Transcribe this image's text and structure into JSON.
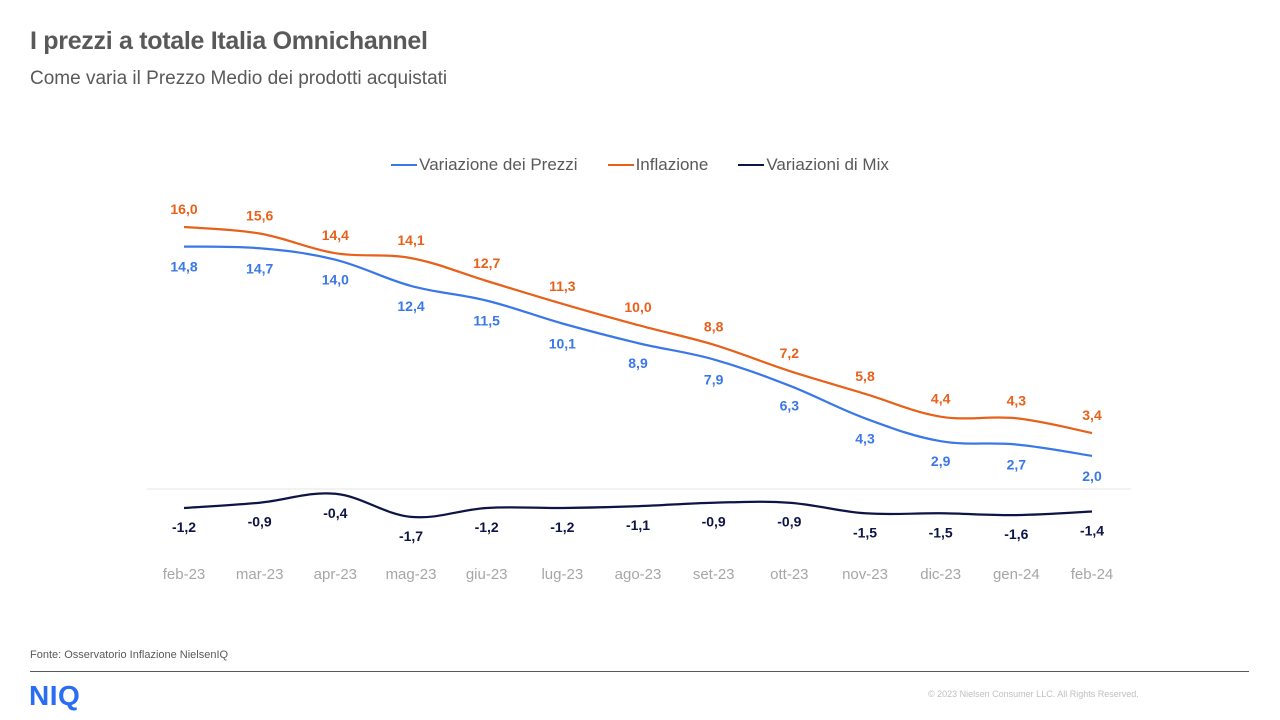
{
  "header": {
    "title": "I prezzi a totale Italia Omnichannel",
    "subtitle": "Come varia il Prezzo  Medio dei prodotti acquistati"
  },
  "footer": {
    "source": "Fonte: Osservatorio Inflazione NielsenIQ",
    "logo": "NIQ",
    "copyright": "© 2023  Nielsen Consumer LLC. All Rights Reserved."
  },
  "colors": {
    "prezzi": "#3b78e7",
    "inflazione": "#e8611a",
    "mix": "#0d1446",
    "axis_text": "#a6a6a6",
    "brand": "#2a6df4"
  },
  "chart_data": {
    "type": "line",
    "title": "I prezzi a totale Italia Omnichannel",
    "subtitle": "Come varia il Prezzo  Medio dei prodotti acquistati",
    "xlabel": "",
    "ylabel": "",
    "grid": false,
    "legend_position": "top-center",
    "categories": [
      "feb-23",
      "mar-23",
      "apr-23",
      "mag-23",
      "giu-23",
      "lug-23",
      "ago-23",
      "set-23",
      "ott-23",
      "nov-23",
      "dic-23",
      "gen-24",
      "feb-24"
    ],
    "series": [
      {
        "name": "Variazione dei Prezzi",
        "color": "#3b78e7",
        "values": [
          14.8,
          14.7,
          14.0,
          12.4,
          11.5,
          10.1,
          8.9,
          7.9,
          6.3,
          4.3,
          2.9,
          2.7,
          2.0
        ],
        "labels": [
          "14,8",
          "14,7",
          "14,0",
          "12,4",
          "11,5",
          "10,1",
          "8,9",
          "7,9",
          "6,3",
          "4,3",
          "2,9",
          "2,7",
          "2,0"
        ]
      },
      {
        "name": "Inflazione",
        "color": "#e8611a",
        "values": [
          16.0,
          15.6,
          14.4,
          14.1,
          12.7,
          11.3,
          10.0,
          8.8,
          7.2,
          5.8,
          4.4,
          4.3,
          3.4
        ],
        "labels": [
          "16,0",
          "15,6",
          "14,4",
          "14,1",
          "12,7",
          "11,3",
          "10,0",
          "8,8",
          "7,2",
          "5,8",
          "4,4",
          "4,3",
          "3,4"
        ]
      },
      {
        "name": "Variazioni di Mix",
        "color": "#0d1446",
        "values": [
          -1.2,
          -0.9,
          -0.4,
          -1.7,
          -1.2,
          -1.2,
          -1.1,
          -0.9,
          -0.9,
          -1.5,
          -1.5,
          -1.6,
          -1.4
        ],
        "labels": [
          "-1,2",
          "-0,9",
          "-0,4",
          "-1,7",
          "-1,2",
          "-1,2",
          "-1,1",
          "-0,9",
          "-0,9",
          "-1,5",
          "-1,5",
          "-1,6",
          "-1,4"
        ]
      }
    ]
  }
}
